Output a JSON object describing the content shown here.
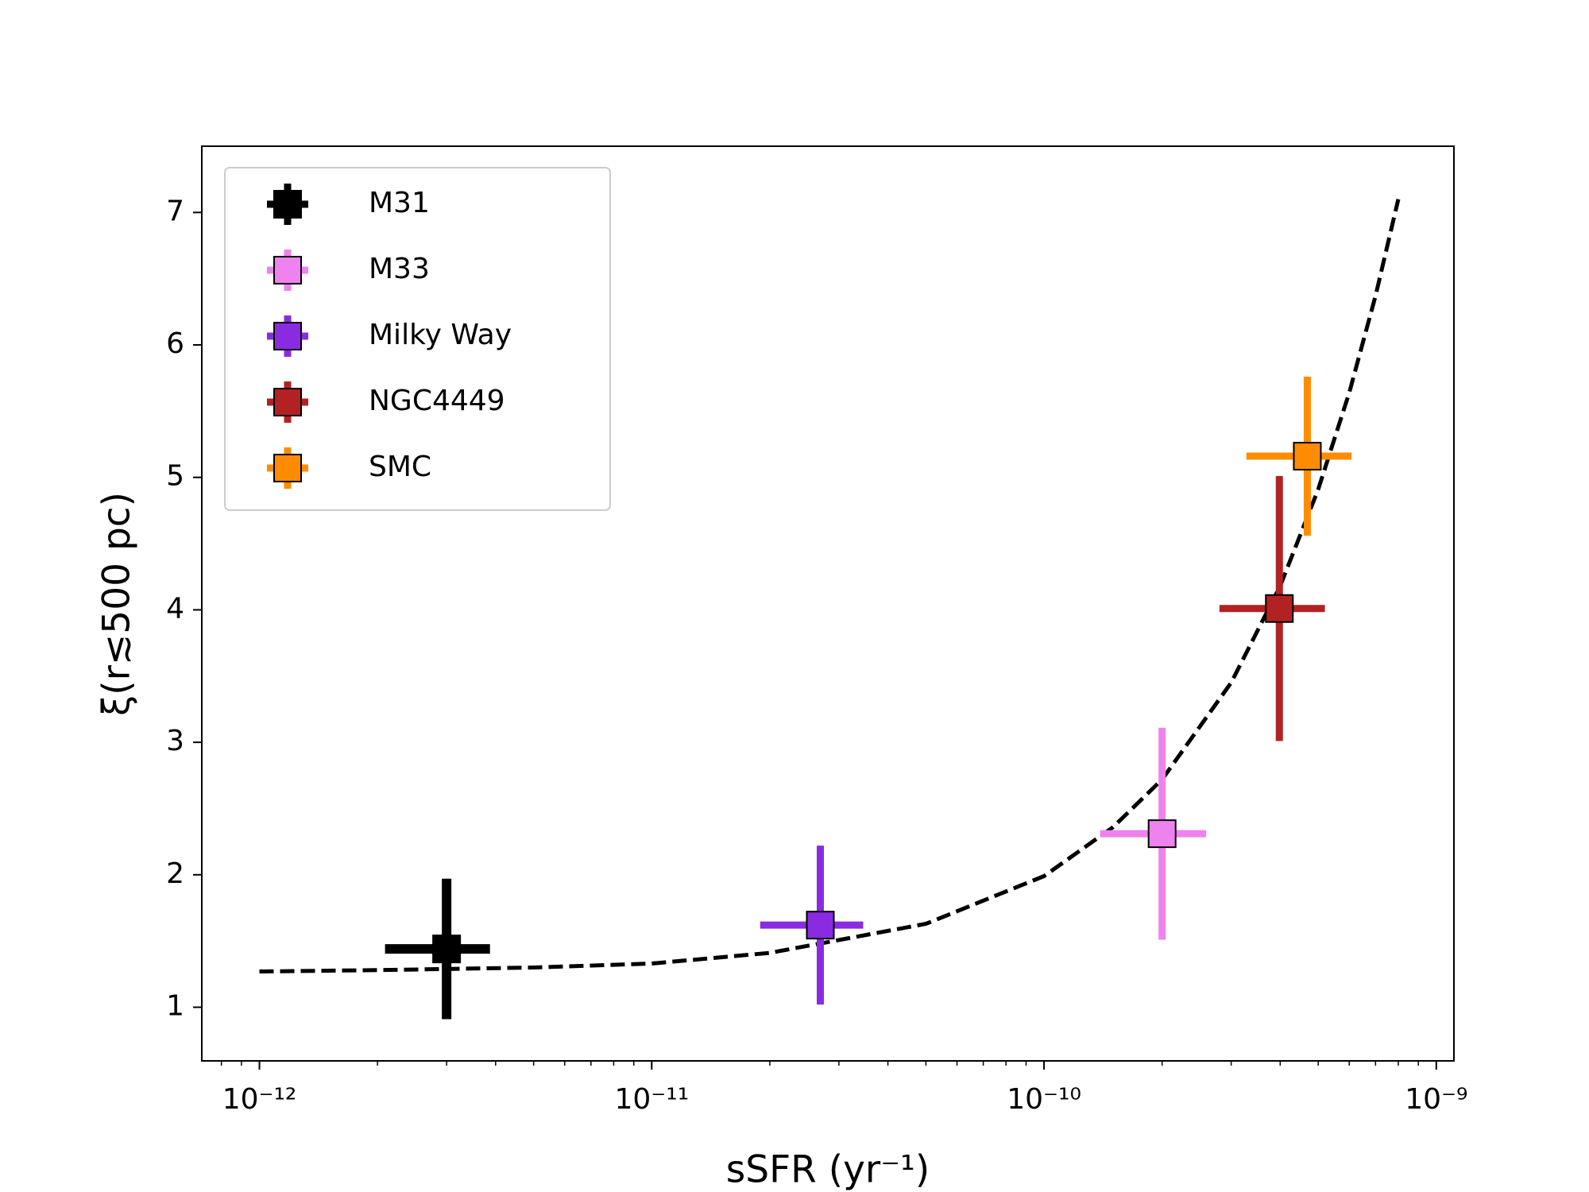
{
  "chart_data": {
    "type": "errorbar-scatter",
    "x_label": "sSFR (yr⁻¹)",
    "y_label": "ξ(r≲500 pc)",
    "xscale": "log",
    "xlim": [
      7.13e-13,
      1.109e-09
    ],
    "ylim": [
      0.595,
      7.5
    ],
    "xticks": [
      {
        "value": 1e-12,
        "label": "10⁻¹²"
      },
      {
        "value": 1e-11,
        "label": "10⁻¹¹"
      },
      {
        "value": 1e-10,
        "label": "10⁻¹⁰"
      },
      {
        "value": 1e-09,
        "label": "10⁻⁹"
      }
    ],
    "yticks": [
      1,
      2,
      3,
      4,
      5,
      6,
      7
    ],
    "legend": "upper left",
    "series": [
      {
        "name": "M31",
        "color": "#000000",
        "x": [
          3e-12
        ],
        "values": [
          1.44
        ],
        "xerr": [
          [
            9.1e-13,
            8.7e-13
          ]
        ],
        "yerr": [
          0.53
        ]
      },
      {
        "name": "M33",
        "color": "#ee82ee",
        "x": [
          2e-10
        ],
        "values": [
          2.31
        ],
        "xerr": [
          [
            6.1e-11,
            5.9e-11
          ]
        ],
        "yerr": [
          0.8
        ]
      },
      {
        "name": "Milky Way",
        "color": "#8a2be2",
        "x": [
          2.69e-11
        ],
        "values": [
          1.62
        ],
        "xerr": [
          [
            8e-12,
            7.7e-12
          ]
        ],
        "yerr": [
          0.6
        ]
      },
      {
        "name": "NGC4449",
        "color": "#b22222",
        "x": [
          3.98e-10
        ],
        "values": [
          4.01
        ],
        "xerr": [
          [
            1.18e-10,
            1.22e-10
          ]
        ],
        "yerr": [
          1.0
        ]
      },
      {
        "name": "SMC",
        "color": "#ff8c00",
        "x": [
          4.69e-10
        ],
        "values": [
          5.16
        ],
        "xerr": [
          [
            1.41e-10,
            1.39e-10
          ]
        ],
        "yerr": [
          0.6
        ]
      }
    ],
    "fit": {
      "color": "#000000",
      "x": [
        1e-12,
        2e-12,
        5e-12,
        1e-11,
        2e-11,
        5e-11,
        1e-10,
        1.5e-10,
        2e-10,
        3e-10,
        4e-10,
        5e-10,
        6e-10,
        7e-10,
        8e-10
      ],
      "values": [
        1.27,
        1.28,
        1.3,
        1.33,
        1.41,
        1.63,
        1.99,
        2.36,
        2.72,
        3.45,
        4.18,
        4.91,
        5.64,
        6.37,
        7.1
      ]
    }
  }
}
